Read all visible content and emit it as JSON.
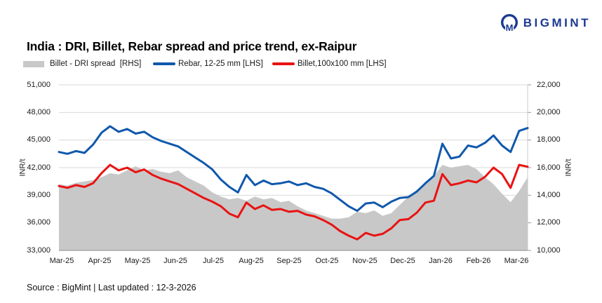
{
  "logo": {
    "text": "BIGMINT",
    "color": "#1c3a91"
  },
  "title": "India : DRI, Billet, Rebar spread and price trend, ex-Raipur",
  "legend": [
    {
      "label": "Billet - DRI spread  [RHS]",
      "type": "area",
      "color": "#c8c8c8"
    },
    {
      "label": "Rebar, 12-25 mm [LHS]",
      "type": "line",
      "color": "#1058ac"
    },
    {
      "label": "Billet,100x100 mm [LHS]",
      "type": "line",
      "color": "#e91313"
    }
  ],
  "footer": {
    "text": "Source : BigMint | Last updated : 12-3-2026"
  },
  "chart_data": {
    "type": "line",
    "subtype": "dual-axis line + area combo, weekly frequency",
    "x_labels": [
      "Mar-25",
      "Apr-25",
      "May-25",
      "Jun-25",
      "Jul-25",
      "Aug-25",
      "Sep-25",
      "Oct-25",
      "Nov-25",
      "Dec-25",
      "Jan-26",
      "Feb-26",
      "Mar-26"
    ],
    "left_axis": {
      "label": "INR/t",
      "min": 33000,
      "max": 51000,
      "step": 3000,
      "tick_labels": [
        "51,000",
        "48,000",
        "45,000",
        "42,000",
        "39,000",
        "36,000",
        "33,000"
      ]
    },
    "right_axis": {
      "label": "INR/t",
      "min": 10000,
      "max": 22000,
      "step": 2000,
      "tick_labels": [
        "22,000",
        "20,000",
        "18,000",
        "16,000",
        "14,000",
        "12,000",
        "10,000"
      ]
    },
    "grid": "horizontal only",
    "legend_position": "top",
    "series": [
      {
        "name": "Billet - DRI spread [RHS]",
        "type": "area",
        "axis": "right",
        "color": "#c8c8c8",
        "values": [
          14800,
          14700,
          14900,
          15000,
          15100,
          15300,
          15600,
          15500,
          15800,
          16100,
          15800,
          15900,
          15700,
          15600,
          15800,
          15300,
          15000,
          14700,
          14200,
          13900,
          13700,
          13800,
          13600,
          13900,
          13700,
          13800,
          13500,
          13600,
          13200,
          12900,
          12700,
          12500,
          12300,
          12300,
          12400,
          12800,
          12700,
          12900,
          12500,
          12700,
          13300,
          13900,
          14400,
          14800,
          15400,
          16200,
          16000,
          16100,
          16200,
          15900,
          15300,
          14800,
          14100,
          13500,
          14300,
          15300
        ]
      },
      {
        "name": "Rebar, 12-25 mm [LHS]",
        "type": "line",
        "axis": "left",
        "color": "#1058ac",
        "values": [
          43700,
          43500,
          43800,
          43600,
          44500,
          45800,
          46500,
          45900,
          46200,
          45700,
          45900,
          45300,
          44900,
          44600,
          44300,
          43700,
          43100,
          42500,
          41800,
          40700,
          39900,
          39300,
          41200,
          40100,
          40600,
          40200,
          40300,
          40500,
          40100,
          40300,
          39900,
          39700,
          39200,
          38500,
          37800,
          37300,
          38100,
          38200,
          37700,
          38300,
          38700,
          38800,
          39400,
          40300,
          41100,
          44600,
          43000,
          43200,
          44400,
          44200,
          44700,
          45500,
          44400,
          43700,
          46000,
          46300
        ]
      },
      {
        "name": "Billet,100x100 mm [LHS]",
        "type": "line",
        "axis": "left",
        "color": "#e91313",
        "values": [
          40000,
          39800,
          40100,
          39900,
          40300,
          41400,
          42300,
          41700,
          42000,
          41500,
          41800,
          41200,
          40800,
          40500,
          40200,
          39700,
          39200,
          38700,
          38300,
          37800,
          37000,
          36600,
          38200,
          37500,
          37900,
          37400,
          37500,
          37200,
          37300,
          36900,
          36700,
          36300,
          35800,
          35100,
          34600,
          34200,
          34900,
          34600,
          34800,
          35400,
          36300,
          36400,
          37100,
          38200,
          38400,
          41300,
          40100,
          40300,
          40600,
          40400,
          41000,
          42000,
          41300,
          39800,
          42300,
          42100
        ]
      }
    ]
  }
}
